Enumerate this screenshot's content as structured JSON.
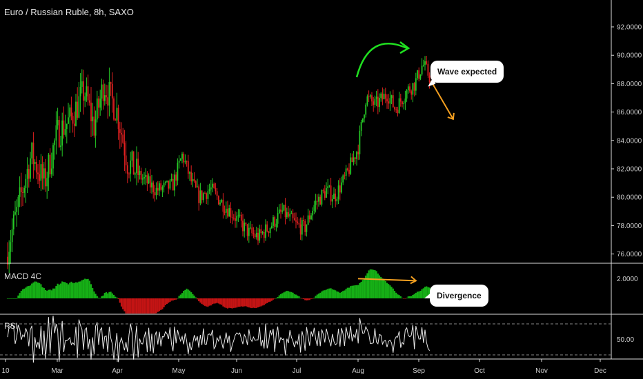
{
  "header": {
    "title": "Euro / Russian Ruble, 8h, SAXO"
  },
  "panes": {
    "macd_label": "MACD 4C",
    "rsi_label": "RSI"
  },
  "annotations": {
    "wave": "Wave expected",
    "divergence": "Divergence"
  },
  "colors": {
    "up": "#26c826",
    "down": "#e02020",
    "macd_up": "#16b016",
    "macd_down": "#c41414",
    "rsi_line": "#e8e8e8",
    "arrow_green": "#20e020",
    "arrow_orange": "#f5a020",
    "axis": "#cfcfcf"
  },
  "chart_data": {
    "type": "candlestick",
    "price_axis": {
      "ticks": [
        "92.0000",
        "90.0000",
        "88.0000",
        "86.0000",
        "84.0000",
        "82.0000",
        "80.0000",
        "78.0000",
        "76.0000"
      ],
      "range": [
        75.3,
        93.2
      ]
    },
    "macd_axis": {
      "ticks": [
        "2.0000"
      ]
    },
    "rsi_axis": {
      "ticks": [
        "50.00"
      ],
      "bands": [
        70,
        30
      ]
    },
    "time_axis": {
      "labels": [
        "10",
        "Mar",
        "Apr",
        "May",
        "Jun",
        "Jul",
        "Aug",
        "Sep",
        "Oct",
        "Nov",
        "Dec"
      ]
    },
    "price_path": [
      [
        "2020-02-10",
        75.8
      ],
      [
        "2020-02-20",
        83.0
      ],
      [
        "2020-02-25",
        81.0
      ],
      [
        "2020-03-01",
        84.5
      ],
      [
        "2020-03-08",
        85.5
      ],
      [
        "2020-03-15",
        87.5
      ],
      [
        "2020-03-20",
        85.0
      ],
      [
        "2020-03-25",
        88.0
      ],
      [
        "2020-04-01",
        86.0
      ],
      [
        "2020-04-06",
        82.5
      ],
      [
        "2020-04-12",
        81.5
      ],
      [
        "2020-04-20",
        80.5
      ],
      [
        "2020-04-28",
        80.8
      ],
      [
        "2020-05-03",
        83.0
      ],
      [
        "2020-05-08",
        81.0
      ],
      [
        "2020-05-12",
        80.0
      ],
      [
        "2020-05-18",
        80.6
      ],
      [
        "2020-05-25",
        79.5
      ],
      [
        "2020-06-01",
        78.5
      ],
      [
        "2020-06-07",
        77.5
      ],
      [
        "2020-06-12",
        77.2
      ],
      [
        "2020-06-18",
        78.0
      ],
      [
        "2020-06-24",
        79.0
      ],
      [
        "2020-07-01",
        78.0
      ],
      [
        "2020-07-05",
        77.8
      ],
      [
        "2020-07-10",
        79.5
      ],
      [
        "2020-07-16",
        80.5
      ],
      [
        "2020-07-20",
        80.0
      ],
      [
        "2020-07-26",
        81.5
      ],
      [
        "2020-08-01",
        83.5
      ],
      [
        "2020-08-05",
        87.0
      ],
      [
        "2020-08-10",
        86.5
      ],
      [
        "2020-08-16",
        87.3
      ],
      [
        "2020-08-20",
        86.2
      ],
      [
        "2020-08-26",
        87.5
      ],
      [
        "2020-08-30",
        88.0
      ],
      [
        "2020-09-03",
        89.4
      ],
      [
        "2020-09-07",
        88.3
      ]
    ],
    "forecast_arrow": [
      [
        "2020-09-07",
        88.2
      ],
      [
        "2020-09-18",
        85.5
      ]
    ],
    "divergence_line": [
      [
        "2020-08-01",
        1.85
      ],
      [
        "2020-09-03",
        1.65
      ]
    ]
  }
}
